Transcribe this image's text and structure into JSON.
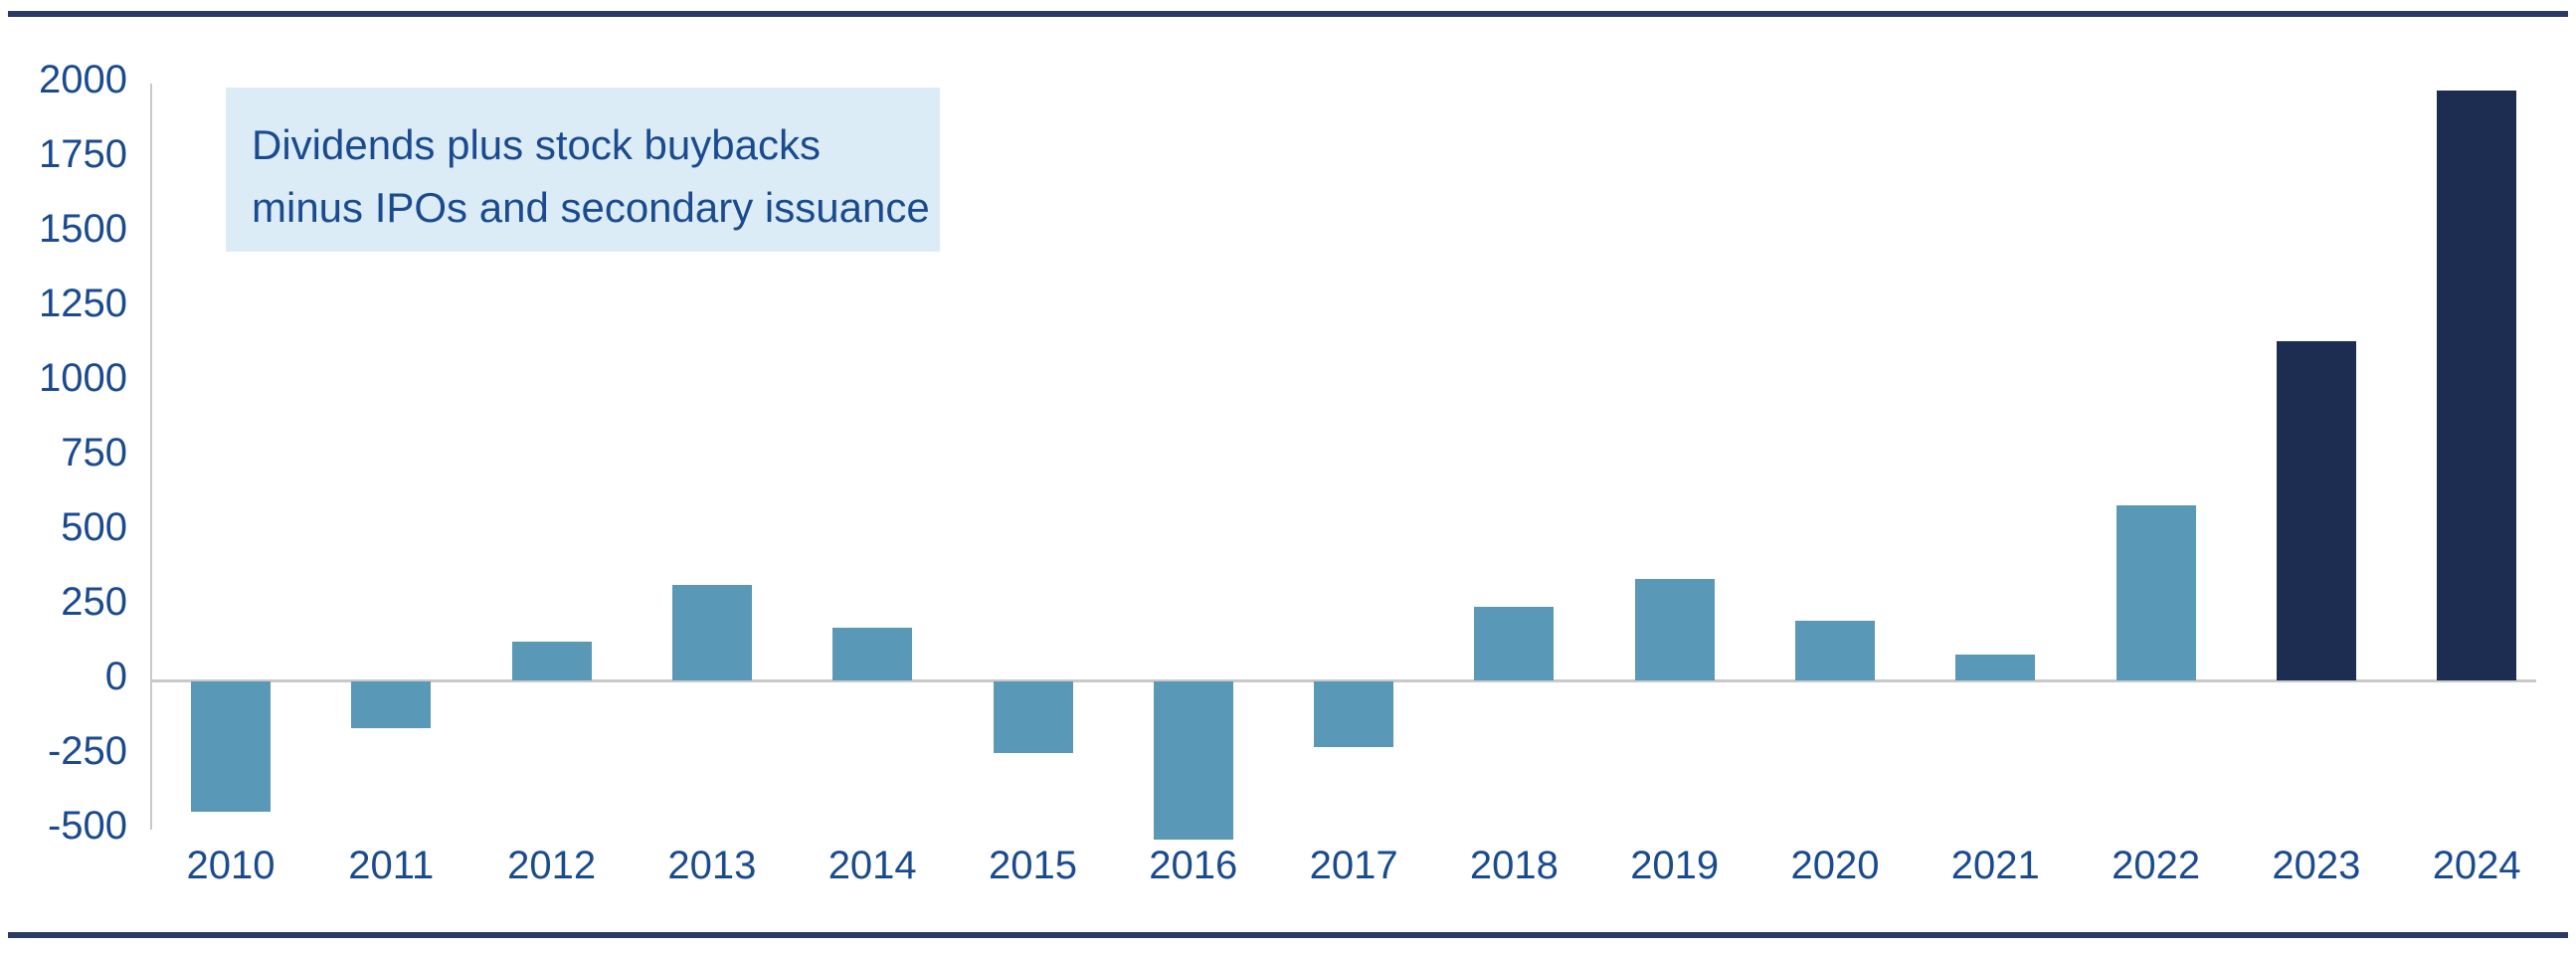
{
  "chart_data": {
    "type": "bar",
    "categories": [
      "2010",
      "2011",
      "2012",
      "2013",
      "2014",
      "2015",
      "2016",
      "2017",
      "2018",
      "2019",
      "2020",
      "2021",
      "2022",
      "2023",
      "2024"
    ],
    "values": [
      -435,
      -155,
      130,
      320,
      175,
      -240,
      -530,
      -220,
      245,
      340,
      200,
      85,
      585,
      1135,
      1975
    ],
    "highlight_categories": [
      "2023",
      "2024"
    ],
    "title": "",
    "xlabel": "",
    "ylabel": "",
    "ylim": [
      -500,
      2000
    ],
    "yticks": [
      2000,
      1750,
      1500,
      1250,
      1000,
      750,
      500,
      250,
      0,
      -250,
      -500
    ],
    "grid": "zero-baseline-only",
    "legend_position": "none",
    "annotation_lines": [
      "Dividends plus stock buybacks",
      "minus IPOs and secondary issuance"
    ]
  },
  "annotation": {
    "line1": "Dividends plus stock buybacks",
    "line2": "minus IPOs and secondary issuance"
  },
  "colors": {
    "bar": "#5A98B8",
    "bar_highlight": "#1D2D52",
    "frame_rule": "#2B3A64",
    "axis_gray": "#C9C9C9",
    "text_blue": "#1A4B90",
    "annotation_bg": "#DCECF6"
  }
}
